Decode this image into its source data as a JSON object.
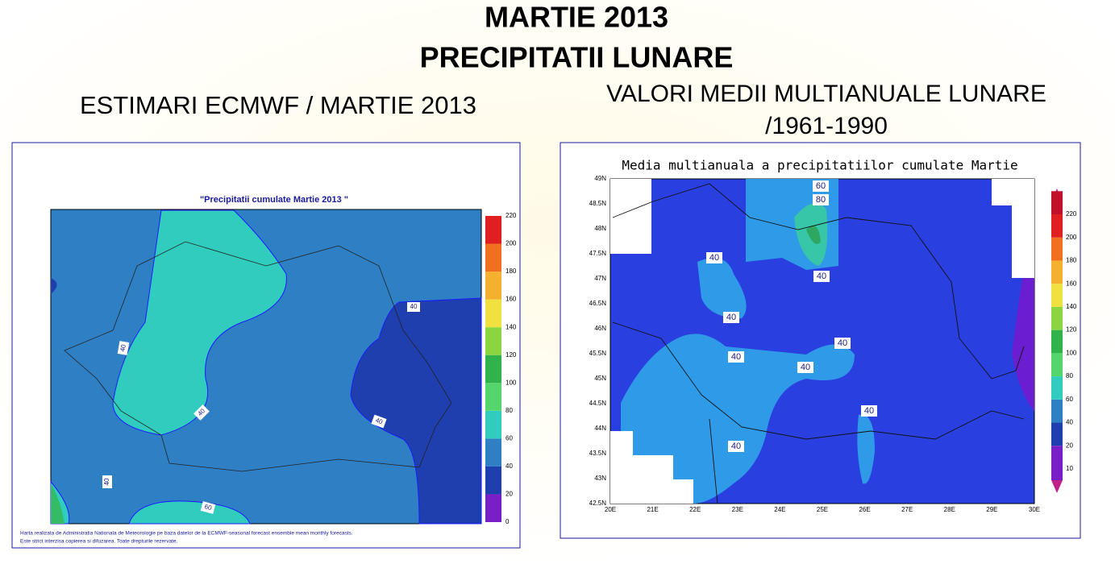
{
  "header": {
    "title": "MARTIE 2013",
    "subtitle": "PRECIPITATII LUNARE"
  },
  "left": {
    "heading": "ESTIMARI ECMWF / MARTIE 2013",
    "map_title": "\"Precipitatii cumulate Martie 2013 \"",
    "legend": [
      "0",
      "20",
      "40",
      "60",
      "80",
      "100",
      "120",
      "140",
      "160",
      "180",
      "200",
      "220"
    ],
    "contour_labels": [
      "40",
      "40",
      "40",
      "40",
      "40",
      "60"
    ],
    "footnote": [
      "Harta realizata de Administratia Nationala de Meteorologie pe baza datelor de la ECMWF-seasonal forecast ensemble mean monthly forecasts.",
      "Este strict interzisa copierea si difuzarea. Toate drepturile rezervate."
    ]
  },
  "right": {
    "heading": [
      "VALORI MEDII MULTIANUALE LUNARE",
      "/1961-1990"
    ],
    "map_title": "Media multianuala a precipitatiilor cumulate Martie",
    "lat_labels": [
      "49N",
      "48.5N",
      "48N",
      "47.5N",
      "47N",
      "46.5N",
      "46N",
      "45.5N",
      "45N",
      "44.5N",
      "44N",
      "43.5N",
      "43N",
      "42.5N"
    ],
    "lon_labels": [
      "20E",
      "21E",
      "22E",
      "23E",
      "24E",
      "25E",
      "26E",
      "27E",
      "28E",
      "29E",
      "30E"
    ],
    "legend": [
      "10",
      "20",
      "40",
      "60",
      "80",
      "100",
      "120",
      "140",
      "160",
      "180",
      "200",
      "220"
    ],
    "contour_labels": [
      "60",
      "80",
      "40",
      "40",
      "40",
      "40",
      "40",
      "40",
      "40",
      "40"
    ]
  }
}
